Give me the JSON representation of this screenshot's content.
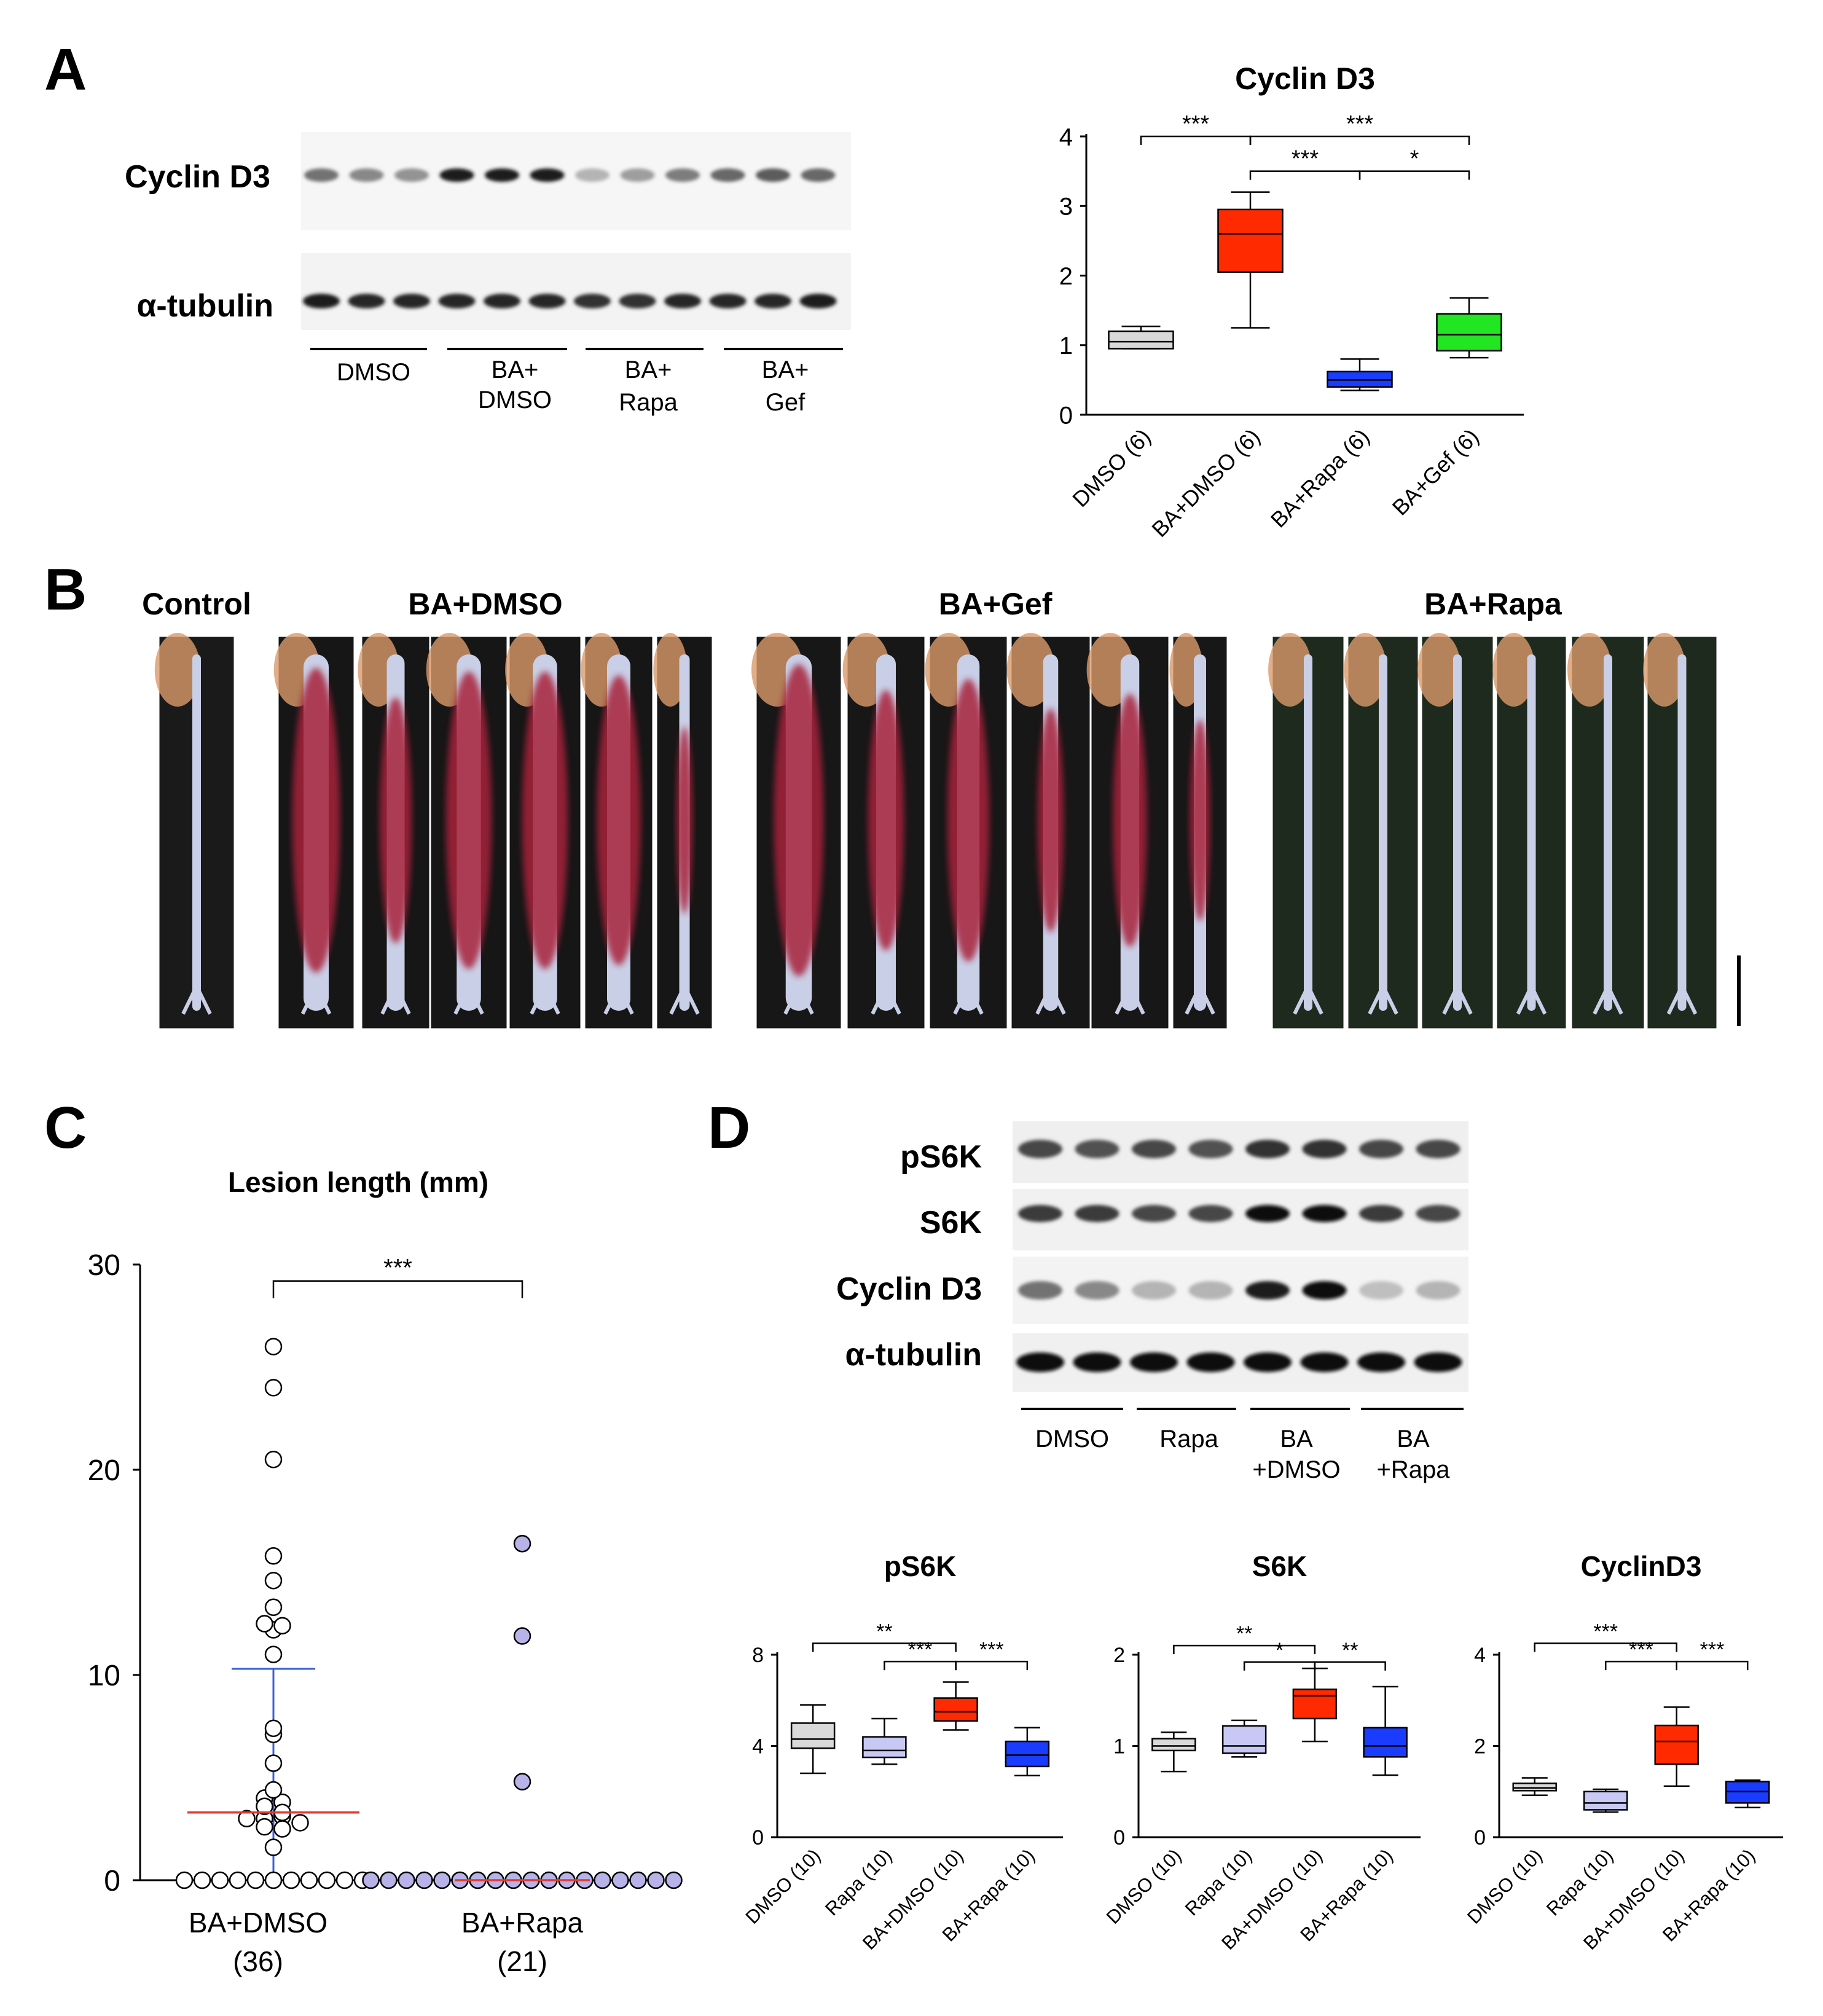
{
  "panels": {
    "A": "A",
    "B": "B",
    "C": "C",
    "D": "D"
  },
  "panelA": {
    "blot_labels": [
      "Cyclin D3",
      "α-tubulin"
    ],
    "lane_groups": [
      {
        "lines": [
          "DMSO"
        ]
      },
      {
        "lines": [
          "BA+",
          "DMSO"
        ]
      },
      {
        "lines": [
          "BA+",
          "Rapa"
        ]
      },
      {
        "lines": [
          "BA+",
          "Gef"
        ]
      }
    ],
    "band_intensity": {
      "cyclin": [
        0.55,
        0.45,
        0.4,
        0.95,
        0.95,
        0.95,
        0.25,
        0.35,
        0.5,
        0.6,
        0.65,
        0.6
      ],
      "tubulin": [
        0.95,
        0.9,
        0.9,
        0.9,
        0.9,
        0.9,
        0.85,
        0.85,
        0.9,
        0.9,
        0.9,
        0.95
      ]
    }
  },
  "panelB": {
    "groups": [
      "Control",
      "BA+DMSO",
      "BA+Gef",
      "BA+Rapa"
    ]
  },
  "panelD": {
    "blot_labels": [
      "pS6K",
      "S6K",
      "Cyclin D3",
      "α-tubulin"
    ],
    "lane_groups": [
      {
        "lines": [
          "DMSO"
        ]
      },
      {
        "lines": [
          "Rapa"
        ]
      },
      {
        "lines": [
          "BA",
          "+DMSO"
        ]
      },
      {
        "lines": [
          "BA",
          "+Rapa"
        ]
      }
    ],
    "band_intensity": {
      "ps6k": [
        0.75,
        0.7,
        0.75,
        0.7,
        0.85,
        0.85,
        0.75,
        0.75
      ],
      "s6k": [
        0.8,
        0.8,
        0.75,
        0.75,
        1.0,
        1.0,
        0.8,
        0.75
      ],
      "cyclin": [
        0.55,
        0.45,
        0.25,
        0.25,
        0.95,
        1.0,
        0.2,
        0.25
      ],
      "tubulin": [
        1.0,
        1.0,
        1.0,
        1.0,
        1.0,
        1.0,
        1.0,
        1.0
      ]
    }
  },
  "colors": {
    "dmso": "#d9d9d9",
    "ba_dmso": "#ff2a00",
    "ba_rapa": "#1a3cff",
    "ba_gef": "#22e622",
    "rapa": "#c8c8f5",
    "median_red": "#e63a2e",
    "sd_blue": "#3a5fd9",
    "rapa_dot": "#b7b2e8"
  },
  "chart_data": [
    {
      "type": "box",
      "title": "Cyclin D3",
      "categories": [
        "DMSO (6)",
        "BA+DMSO (6)",
        "BA+Rapa (6)",
        "BA+Gef (6)"
      ],
      "boxes": [
        {
          "min": 0.95,
          "q1": 0.95,
          "median": 1.05,
          "q3": 1.2,
          "max": 1.27
        },
        {
          "min": 1.25,
          "q1": 2.05,
          "median": 2.6,
          "q3": 2.95,
          "max": 3.2
        },
        {
          "min": 0.35,
          "q1": 0.4,
          "median": 0.5,
          "q3": 0.62,
          "max": 0.8
        },
        {
          "min": 0.82,
          "q1": 0.92,
          "median": 1.15,
          "q3": 1.45,
          "max": 1.68
        }
      ],
      "ylim": [
        0,
        4
      ],
      "yticks": [
        0,
        1,
        2,
        3,
        4
      ],
      "significance": [
        {
          "from": 0,
          "to": 1,
          "label": "***",
          "y": 4.0
        },
        {
          "from": 1,
          "to": 3,
          "label": "***",
          "y": 4.0
        },
        {
          "from": 1,
          "to": 2,
          "label": "***",
          "y": 3.5
        },
        {
          "from": 2,
          "to": 3,
          "label": "*",
          "y": 3.5
        }
      ]
    },
    {
      "type": "scatter",
      "title": "Lesion length (mm)",
      "categories": [
        "BA+DMSO",
        "BA+Rapa"
      ],
      "counts": [
        "(36)",
        "(21)"
      ],
      "ylim": [
        0,
        30
      ],
      "yticks": [
        0,
        10,
        20,
        30
      ],
      "group1_values": [
        26,
        24,
        20.5,
        15.8,
        14.6,
        13.3,
        12.5,
        12.4,
        12.2,
        11,
        7.4,
        7.1,
        5.7,
        4.4,
        4,
        3.6,
        3.3,
        3,
        3,
        3.8,
        3.1,
        2.8,
        2.6,
        2.5,
        1.6,
        0,
        0,
        0,
        0,
        0,
        0,
        0,
        0,
        0,
        0,
        0
      ],
      "group2_values": [
        16.4,
        11.9,
        4.8,
        0,
        0,
        0,
        0,
        0,
        0,
        0,
        0,
        0,
        0,
        0,
        0,
        0,
        0,
        0,
        0,
        0,
        0
      ],
      "group1_median": 3.3,
      "group1_sd_high": 10.3,
      "group1_sd_low": 0,
      "group2_median": 0,
      "significance": {
        "label": "***",
        "y": 29.2
      }
    },
    {
      "type": "box",
      "title": "pS6K",
      "categories": [
        "DMSO (10)",
        "Rapa (10)",
        "BA+DMSO (10)",
        "BA+Rapa (10)"
      ],
      "boxes": [
        {
          "min": 2.8,
          "q1": 3.9,
          "median": 4.3,
          "q3": 5.0,
          "max": 5.8
        },
        {
          "min": 3.2,
          "q1": 3.5,
          "median": 3.8,
          "q3": 4.4,
          "max": 5.2
        },
        {
          "min": 4.7,
          "q1": 5.1,
          "median": 5.5,
          "q3": 6.1,
          "max": 6.8
        },
        {
          "min": 2.7,
          "q1": 3.1,
          "median": 3.6,
          "q3": 4.2,
          "max": 4.8
        }
      ],
      "ylim": [
        0,
        8
      ],
      "yticks": [
        0,
        4,
        8
      ],
      "significance": [
        {
          "from": 0,
          "to": 2,
          "label": "**",
          "y": 8.5
        },
        {
          "from": 1,
          "to": 2,
          "label": "***",
          "y": 7.7
        },
        {
          "from": 2,
          "to": 3,
          "label": "***",
          "y": 7.7
        }
      ]
    },
    {
      "type": "box",
      "title": "S6K",
      "categories": [
        "DMSO (10)",
        "Rapa (10)",
        "BA+DMSO (10)",
        "BA+Rapa (10)"
      ],
      "boxes": [
        {
          "min": 0.72,
          "q1": 0.95,
          "median": 1.0,
          "q3": 1.08,
          "max": 1.15
        },
        {
          "min": 0.88,
          "q1": 0.92,
          "median": 1.0,
          "q3": 1.22,
          "max": 1.28
        },
        {
          "min": 1.05,
          "q1": 1.3,
          "median": 1.55,
          "q3": 1.62,
          "max": 1.85
        },
        {
          "min": 0.68,
          "q1": 0.88,
          "median": 1.0,
          "q3": 1.2,
          "max": 1.65
        }
      ],
      "ylim": [
        0,
        2
      ],
      "yticks": [
        0,
        1,
        2
      ],
      "significance": [
        {
          "from": 0,
          "to": 2,
          "label": "**",
          "y": 2.1
        },
        {
          "from": 1,
          "to": 2,
          "label": "*",
          "y": 1.92
        },
        {
          "from": 2,
          "to": 3,
          "label": "**",
          "y": 1.92
        }
      ]
    },
    {
      "type": "box",
      "title": "CyclinD3",
      "categories": [
        "DMSO (10)",
        "Rapa (10)",
        "BA+DMSO (10)",
        "BA+Rapa (10)"
      ],
      "boxes": [
        {
          "min": 0.92,
          "q1": 1.02,
          "median": 1.08,
          "q3": 1.18,
          "max": 1.3
        },
        {
          "min": 0.55,
          "q1": 0.6,
          "median": 0.75,
          "q3": 1.0,
          "max": 1.05
        },
        {
          "min": 1.12,
          "q1": 1.6,
          "median": 2.1,
          "q3": 2.45,
          "max": 2.85
        },
        {
          "min": 0.65,
          "q1": 0.75,
          "median": 1.0,
          "q3": 1.22,
          "max": 1.25
        }
      ],
      "ylim": [
        0,
        4
      ],
      "yticks": [
        0,
        2,
        4
      ],
      "significance": [
        {
          "from": 0,
          "to": 2,
          "label": "***",
          "y": 4.25
        },
        {
          "from": 1,
          "to": 2,
          "label": "***",
          "y": 3.85
        },
        {
          "from": 2,
          "to": 3,
          "label": "***",
          "y": 3.85
        }
      ]
    }
  ]
}
